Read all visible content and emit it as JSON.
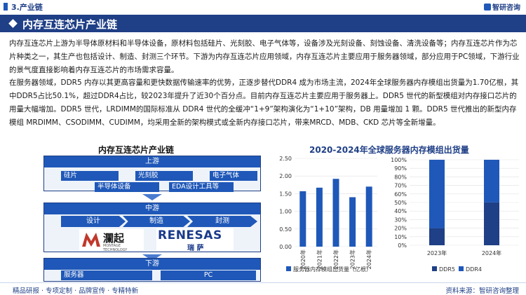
{
  "header": {
    "section": "3.产业链",
    "brand": "智研咨询"
  },
  "title": "内存互连芯片产业链",
  "body": {
    "p1": "内存互连芯片上游为半导体原材料和半导体设备，原材料包括硅片、光刻胶、电子气体等，设备涉及光刻设备、刻蚀设备、清洗设备等；内存互连芯片作为芯片种类之一，其生产也包括设计、制造、封测三个环节。下游为内存互连芯片应用领域，内存互连芯片主要应用于服务器领域，部分应用于PC领域，下游行业的景气度直接影响着内存互连芯片的市场需求容量。",
    "p2": "在服务器领域，DDR5 内存以其更高容量和更快数据传输速率的优势，正逐步替代DDR4 成为市场主流，2024年全球服务器内存模组出货量为1.70亿根，其中DDR5占比50.1%，超过DDR4占比，较2023年提升了近30个百分点。目前内存互连芯片主要应用于服务器上。DDR5 世代的新型模组对内存接口芯片的用量大幅增加。DDR5 世代，LRDIMM的国际标准从 DDR4 世代的全缓冲“1+9”架构演化为“1+10”架构，DB 用量增加 1 颗。DDR5 世代推出的新型内存模组 MRDIMM、CSODIMM、CUDIMM，均采用全新的架构模式或全新内存接口芯片，带来MRCD、MDB、CKD 芯片等全新增量。"
  },
  "diagram": {
    "title": "内存互连芯片产业链",
    "upstream": {
      "label": "上游",
      "items": [
        "硅片",
        "光刻胶",
        "电子气体",
        "半导体设备",
        "EDA设计工具等"
      ]
    },
    "midstream": {
      "label": "中游",
      "steps": [
        "设计",
        "制造",
        "封测"
      ],
      "logos": [
        "瀾起",
        "RENESAS",
        "瑞 萨"
      ],
      "logo_sub": "MONTAGE TECHNOLOGY"
    },
    "downstream": {
      "label": "下游",
      "items": [
        "服务器",
        "PC"
      ]
    }
  },
  "chart_title": "2020-2024年全球服务器内存模组出货量",
  "chart_data": [
    {
      "type": "bar",
      "categories": [
        "2020年",
        "2021年",
        "2022年",
        "2023年",
        "2024年"
      ],
      "series": [
        {
          "name": "服务器内存模组出货量（亿根）",
          "values": [
            1.57,
            1.67,
            1.92,
            1.4,
            1.7
          ],
          "color": "#1f58b8"
        }
      ],
      "ylim": [
        0,
        2.5
      ],
      "yticks": [
        "0.00",
        "0.50",
        "1.00",
        "1.50",
        "2.00",
        "2.50"
      ],
      "legend": "bottom"
    },
    {
      "type": "bar",
      "stacked": true,
      "percent": true,
      "categories": [
        "2023年",
        "2024年"
      ],
      "series": [
        {
          "name": "DDR5",
          "values": [
            20,
            50.1
          ],
          "color": "#1f3f86"
        },
        {
          "name": "DDR4",
          "values": [
            80,
            49.9
          ],
          "color": "#1f58b8"
        }
      ],
      "yticks": [
        "0%",
        "10%",
        "20%",
        "30%",
        "40%",
        "50%",
        "60%",
        "70%",
        "80%",
        "90%",
        "100%"
      ],
      "legend": "bottom"
    }
  ],
  "footer": {
    "left": "精品研报 · 专项定制 · 品牌宣传 · 专精特新",
    "source": "资料来源：智研咨询整理"
  }
}
